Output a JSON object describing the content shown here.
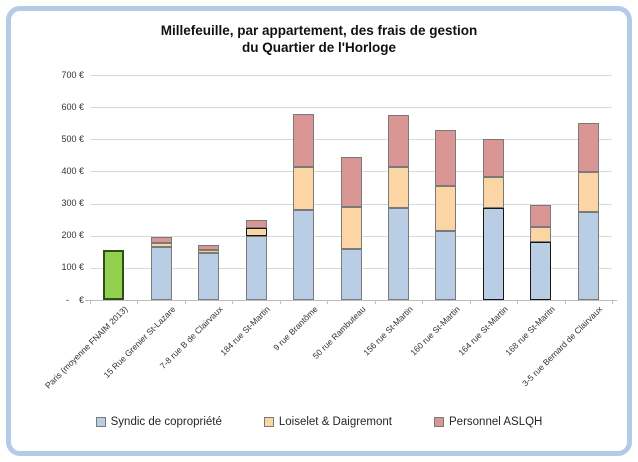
{
  "title": {
    "line1": "Millefeuille, par appartement, des frais de gestion",
    "line2": "du Quartier de l'Horloge"
  },
  "chart_data": {
    "type": "bar",
    "stacked": true,
    "title": "Millefeuille, par appartement, des frais de gestion du Quartier de l'Horloge",
    "xlabel": "",
    "ylabel": "",
    "ylim": [
      0,
      700
    ],
    "ytick_step": 100,
    "grid": true,
    "legend_position": "bottom",
    "currency_unit": "€",
    "yticks": [
      {
        "value": 0,
        "label": "-    €"
      },
      {
        "value": 100,
        "label": "100 €"
      },
      {
        "value": 200,
        "label": "200 €"
      },
      {
        "value": 300,
        "label": "300 €"
      },
      {
        "value": 400,
        "label": "400 €"
      },
      {
        "value": 500,
        "label": "500 €"
      },
      {
        "value": 600,
        "label": "600 €"
      },
      {
        "value": 700,
        "label": "700 €"
      }
    ],
    "categories": [
      "Paris (moyenne FNAIM 2013)",
      "15 Rue Grenier St-Lazare",
      "7-8 rue B de Clairvaux",
      "184 rue St-Martin",
      "9 rue Brantôme",
      "50 rue Rambuteau",
      "156 rue St-Martin",
      "160 rue St-Martin",
      "164 rue St-Martin",
      "168 rue St-Maritn",
      "3-5 rue Bernard de Clairvaux"
    ],
    "series": [
      {
        "name": "Syndic de copropriété",
        "color": "#b9cde5",
        "values": [
          155,
          165,
          145,
          200,
          280,
          160,
          285,
          215,
          285,
          180,
          275
        ]
      },
      {
        "name": "Loiselet & Daigremont",
        "color": "#fcd5a4",
        "values": [
          0,
          13,
          12,
          25,
          135,
          130,
          130,
          140,
          98,
          48,
          122
        ]
      },
      {
        "name": "Personnel ASLQH",
        "color": "#d99694",
        "values": [
          0,
          17,
          15,
          25,
          165,
          155,
          160,
          175,
          118,
          67,
          155
        ]
      }
    ],
    "reference_bar": {
      "category_index": 0,
      "color": "#92d050",
      "border_color": "#2f4f17",
      "note": "Paris FNAIM average drawn as a single green bar"
    },
    "highlighted_segments": [
      {
        "category_index": 3,
        "series_index": 1
      },
      {
        "category_index": 8,
        "series_index": 0
      },
      {
        "category_index": 9,
        "series_index": 0
      }
    ]
  },
  "colors": {
    "frame_border": "#b3cbe6",
    "gridline": "#d9d9d9",
    "axis_line": "#bdbdbd",
    "segment_border": "#7a7a7a",
    "highlight_border": "#161616",
    "text": "#333333"
  }
}
